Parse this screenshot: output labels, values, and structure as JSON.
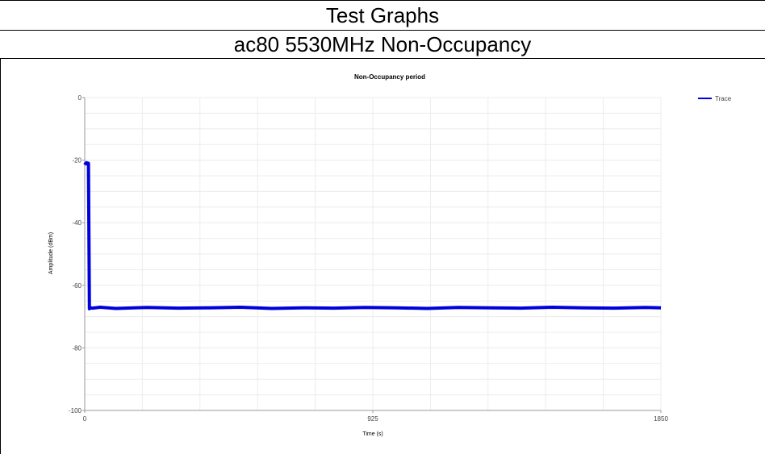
{
  "header": {
    "title": "Test Graphs",
    "subtitle": "ac80 5530MHz Non-Occupancy"
  },
  "colors": {
    "trace": "#0000dd",
    "grid": "#ececec",
    "axis": "#9a9a9a"
  },
  "chart_data": {
    "type": "line",
    "title": "Non-Occupancy period",
    "xlabel": "Time (s)",
    "ylabel": "Amplitude (dBm)",
    "xlim": [
      0,
      1850
    ],
    "ylim": [
      -100,
      0
    ],
    "x_ticks": [
      0,
      925,
      1850
    ],
    "y_ticks": [
      0,
      -20,
      -40,
      -60,
      -80,
      -100
    ],
    "grid": true,
    "legend_position": "top-right",
    "series": [
      {
        "name": "Trace",
        "x": [
          0,
          3,
          6,
          9,
          12,
          15,
          18,
          25,
          50,
          100,
          200,
          300,
          400,
          500,
          600,
          700,
          800,
          900,
          1000,
          1100,
          1200,
          1300,
          1400,
          1500,
          1600,
          1700,
          1800,
          1850
        ],
        "y": [
          -21.5,
          -21.0,
          -20.8,
          -21.2,
          -21.0,
          -67.5,
          -67.2,
          -67.3,
          -67.0,
          -67.4,
          -67.1,
          -67.3,
          -67.2,
          -67.0,
          -67.4,
          -67.2,
          -67.3,
          -67.1,
          -67.2,
          -67.4,
          -67.1,
          -67.2,
          -67.3,
          -67.0,
          -67.2,
          -67.3,
          -67.1,
          -67.2
        ]
      }
    ]
  }
}
